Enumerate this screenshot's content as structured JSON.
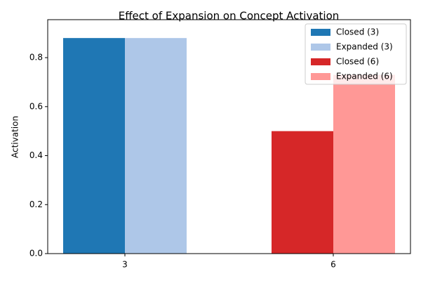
{
  "chart_data": {
    "type": "bar",
    "title": "Effect of Expansion on Concept Activation",
    "y_label": "Activation",
    "categories": [
      "3",
      "6"
    ],
    "series": [
      {
        "name": "Closed (3)",
        "color": "#1f77b4",
        "values": [
          0.88,
          null
        ]
      },
      {
        "name": "Expanded (3)",
        "color": "#aec7e8",
        "values": [
          0.88,
          null
        ]
      },
      {
        "name": "Closed (6)",
        "color": "#d62728",
        "values": [
          null,
          0.5
        ]
      },
      {
        "name": "Expanded (6)",
        "color": "#ff9896",
        "values": [
          null,
          0.73
        ]
      }
    ],
    "ylim": [
      0,
      0.955
    ],
    "yticks": [
      {
        "value": 0,
        "label": "0.0"
      },
      {
        "value": 0.2,
        "label": "0.2"
      },
      {
        "value": 0.4,
        "label": "0.4"
      },
      {
        "value": 0.6,
        "label": "0.6"
      },
      {
        "value": 0.8,
        "label": "0.8"
      }
    ],
    "legend": "upper right"
  }
}
